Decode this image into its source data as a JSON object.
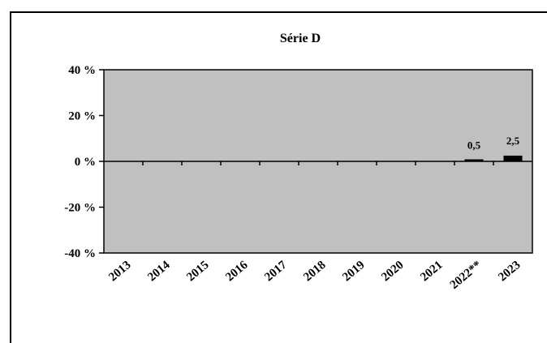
{
  "chart_data": {
    "type": "bar",
    "title": "Série D",
    "xlabel": "",
    "ylabel": "",
    "categories": [
      "2013",
      "2014",
      "2015",
      "2016",
      "2017",
      "2018",
      "2019",
      "2020",
      "2021",
      "2022**",
      "2023"
    ],
    "values": [
      null,
      null,
      null,
      null,
      null,
      null,
      null,
      null,
      null,
      0.5,
      2.5
    ],
    "data_labels": [
      "",
      "",
      "",
      "",
      "",
      "",
      "",
      "",
      "",
      "0,5",
      "2,5"
    ],
    "ylim": [
      -40,
      40
    ],
    "yticks": [
      40,
      20,
      0,
      -20,
      -40
    ],
    "ytick_labels": [
      "40 %",
      "20 %",
      "0 %",
      "-20 %",
      "-40 %"
    ],
    "grid": false,
    "colors": {
      "plot_bg": "#c0c0c0",
      "bar": "#000000",
      "axis": "#000000"
    }
  }
}
